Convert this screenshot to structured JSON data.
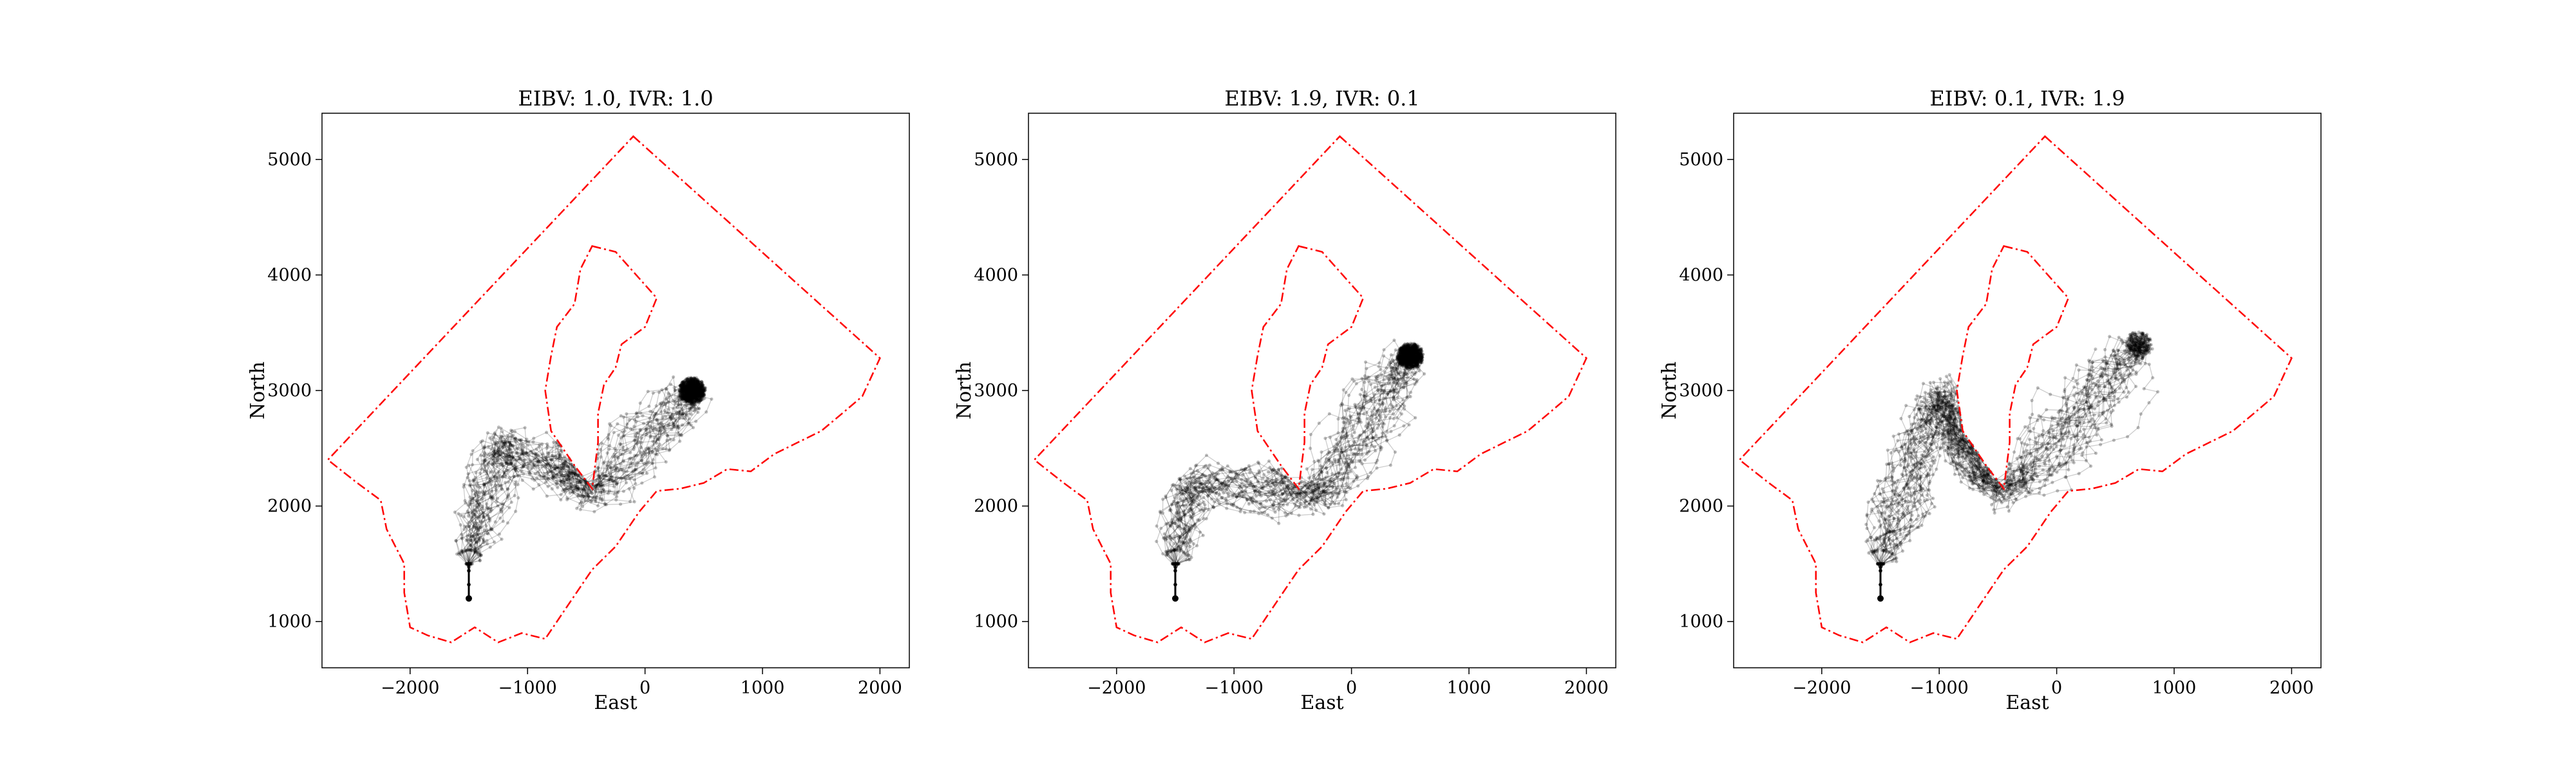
{
  "figure": {
    "panels": [
      {
        "title": "EIBV: 1.0, IVR: 1.0",
        "xlabel": "East",
        "ylabel": "North"
      },
      {
        "title": "EIBV: 1.9, IVR: 0.1",
        "xlabel": "East",
        "ylabel": "North"
      },
      {
        "title": "EIBV: 0.1, IVR: 1.9",
        "xlabel": "East",
        "ylabel": "North"
      }
    ]
  },
  "chart_data": [
    {
      "type": "line",
      "title": "EIBV: 1.0, IVR: 1.0",
      "xlabel": "East",
      "ylabel": "North",
      "xlim": [
        -2750,
        2250
      ],
      "ylim": [
        600,
        5400
      ],
      "xticks": [
        -2000,
        -1000,
        0,
        1000,
        2000
      ],
      "yticks": [
        1000,
        2000,
        3000,
        4000,
        5000
      ],
      "xtick_labels": [
        "−2000",
        "−1000",
        "0",
        "1000",
        "2000"
      ],
      "ytick_labels": [
        "1000",
        "2000",
        "3000",
        "4000",
        "5000"
      ],
      "grid": false,
      "start_point": [
        -1500,
        1200
      ],
      "hotspot": [
        [
          -1200,
          2600
        ],
        [
          -350,
          2150
        ],
        [
          400,
          3000
        ]
      ],
      "series_color": "#000000",
      "boundary_color": "#ff0000"
    },
    {
      "type": "line",
      "title": "EIBV: 1.9, IVR: 0.1",
      "xlabel": "East",
      "ylabel": "North",
      "xlim": [
        -2750,
        2250
      ],
      "ylim": [
        600,
        5400
      ],
      "xticks": [
        -2000,
        -1000,
        0,
        1000,
        2000
      ],
      "yticks": [
        1000,
        2000,
        3000,
        4000,
        5000
      ],
      "xtick_labels": [
        "−2000",
        "−1000",
        "0",
        "1000",
        "2000"
      ],
      "ytick_labels": [
        "1000",
        "2000",
        "3000",
        "4000",
        "5000"
      ],
      "grid": false,
      "start_point": [
        -1500,
        1200
      ],
      "hotspot": [
        [
          -1350,
          2250
        ],
        [
          -200,
          2100
        ],
        [
          500,
          3300
        ]
      ],
      "series_color": "#000000",
      "boundary_color": "#ff0000"
    },
    {
      "type": "line",
      "title": "EIBV: 0.1, IVR: 1.9",
      "xlabel": "East",
      "ylabel": "North",
      "xlim": [
        -2750,
        2250
      ],
      "ylim": [
        600,
        5400
      ],
      "xticks": [
        -2000,
        -1000,
        0,
        1000,
        2000
      ],
      "yticks": [
        1000,
        2000,
        3000,
        4000,
        5000
      ],
      "xtick_labels": [
        "−2000",
        "−1000",
        "0",
        "1000",
        "2000"
      ],
      "ytick_labels": [
        "1000",
        "2000",
        "3000",
        "4000",
        "5000"
      ],
      "grid": false,
      "start_point": [
        -1500,
        1200
      ],
      "hotspot": [
        [
          -1000,
          3000
        ],
        [
          -300,
          2200
        ],
        [
          700,
          3400
        ]
      ],
      "series_color": "#000000",
      "boundary_color": "#ff0000"
    }
  ],
  "boundary": {
    "outer": [
      [
        -100,
        5200
      ],
      [
        2000,
        3280
      ],
      [
        1850,
        2950
      ],
      [
        1700,
        2820
      ],
      [
        1500,
        2650
      ],
      [
        1300,
        2550
      ],
      [
        1100,
        2450
      ],
      [
        900,
        2300
      ],
      [
        700,
        2320
      ],
      [
        500,
        2200
      ],
      [
        300,
        2150
      ],
      [
        100,
        2130
      ],
      [
        -50,
        1950
      ],
      [
        -250,
        1650
      ],
      [
        -450,
        1450
      ],
      [
        -650,
        1150
      ],
      [
        -850,
        850
      ],
      [
        -1050,
        900
      ],
      [
        -1250,
        820
      ],
      [
        -1450,
        950
      ],
      [
        -1650,
        820
      ],
      [
        -1850,
        880
      ],
      [
        -2000,
        950
      ],
      [
        -2050,
        1250
      ],
      [
        -2050,
        1500
      ],
      [
        -2200,
        1800
      ],
      [
        -2250,
        2050
      ],
      [
        -2450,
        2200
      ],
      [
        -2700,
        2400
      ],
      [
        -100,
        5200
      ]
    ],
    "inner": [
      [
        -450,
        4250
      ],
      [
        -250,
        4200
      ],
      [
        100,
        3800
      ],
      [
        0,
        3550
      ],
      [
        -200,
        3400
      ],
      [
        -250,
        3200
      ],
      [
        -350,
        3050
      ],
      [
        -400,
        2800
      ],
      [
        -400,
        2550
      ],
      [
        -450,
        2150
      ],
      [
        -600,
        2350
      ],
      [
        -800,
        2650
      ],
      [
        -850,
        3000
      ],
      [
        -800,
        3300
      ],
      [
        -750,
        3550
      ],
      [
        -600,
        3750
      ],
      [
        -550,
        4050
      ],
      [
        -450,
        4250
      ]
    ]
  }
}
